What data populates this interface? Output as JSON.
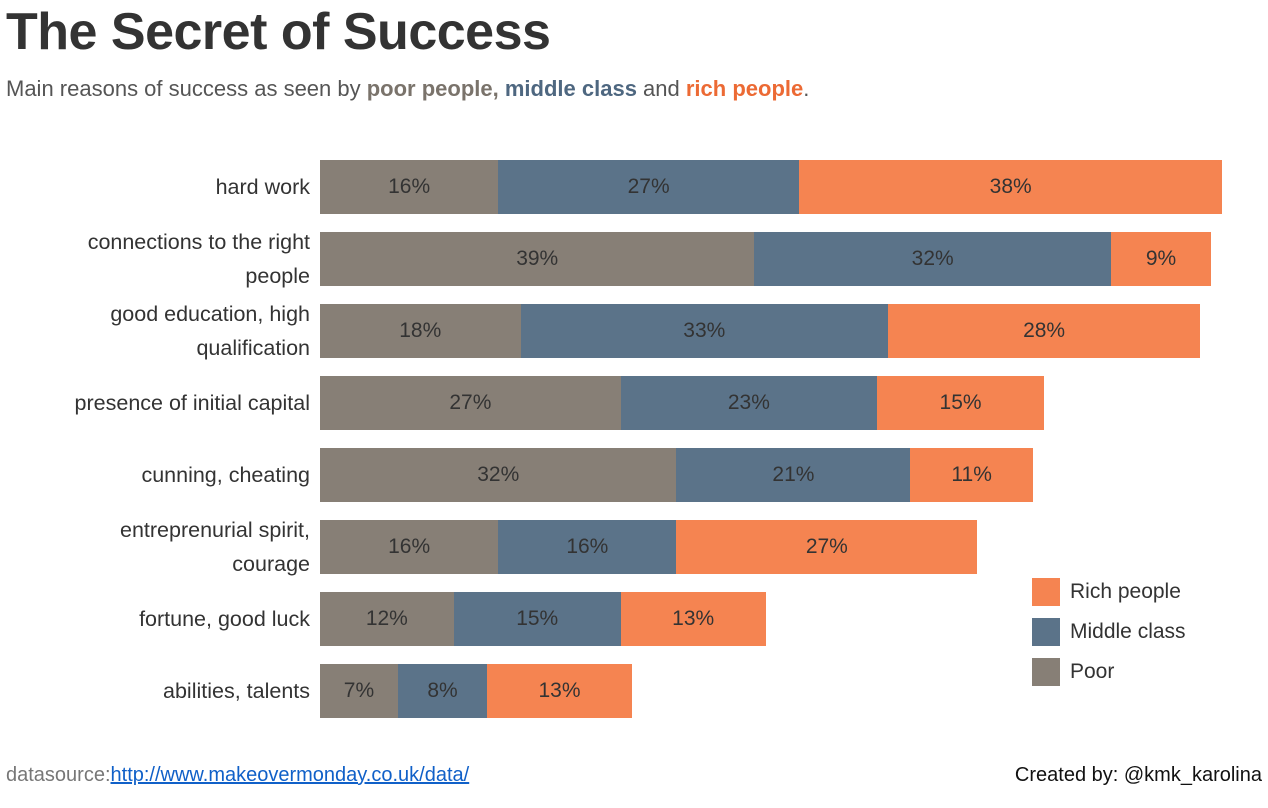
{
  "title": "The Secret of Success",
  "subtitle": {
    "prefix": "Main reasons of success as seen by ",
    "poor": "poor people,",
    "middle": "middle class",
    "and": " and ",
    "rich": "rich people",
    "suffix": "."
  },
  "colors": {
    "poor": "#877f76",
    "middle": "#5b7389",
    "rich": "#f58451"
  },
  "chart_data": {
    "type": "bar",
    "orientation": "horizontal-stacked",
    "categories": [
      "hard work",
      "connections to the right\npeople",
      "good education, high\nqualification",
      "presence of initial capital",
      "cunning, cheating",
      "entreprenurial spirit,\ncourage",
      "fortune, good luck",
      "abilities, talents"
    ],
    "series": [
      {
        "name": "Poor",
        "key": "poor",
        "values": [
          16,
          39,
          18,
          27,
          32,
          16,
          12,
          7
        ]
      },
      {
        "name": "Middle class",
        "key": "middle",
        "values": [
          27,
          32,
          33,
          23,
          21,
          16,
          15,
          8
        ]
      },
      {
        "name": "Rich people",
        "key": "rich",
        "values": [
          38,
          9,
          28,
          15,
          11,
          27,
          13,
          13
        ]
      }
    ],
    "value_suffix": "%",
    "legend": [
      "Rich people",
      "Middle class",
      "Poor"
    ],
    "legend_position": "bottom-right"
  },
  "footer": {
    "datasource_label": "datasource:",
    "datasource_url": "http://www.makeovermonday.co.uk/data/",
    "credit": "Created by: @kmk_karolina"
  }
}
